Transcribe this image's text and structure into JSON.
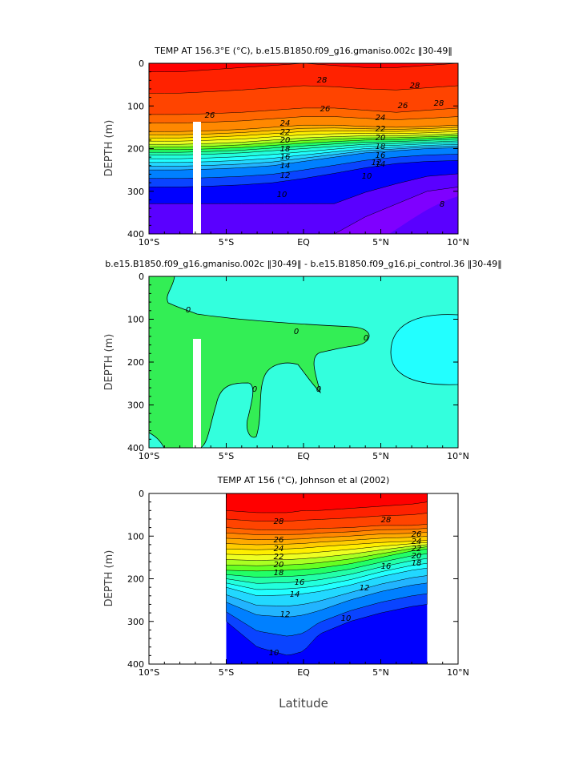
{
  "figure": {
    "xlabel": "Latitude"
  },
  "chart_data": [
    {
      "type": "heatmap",
      "title": "TEMP AT 156.3°E (°C), b.e15.B1850.f09_g16.gmaniso.002c ‖30-49‖",
      "ylabel": "DEPTH (m)",
      "xlim": [
        -10,
        10
      ],
      "ylim": [
        400,
        0
      ],
      "x_ticks": [
        "10°S",
        "5°S",
        "EQ",
        "5°N",
        "10°N"
      ],
      "y_ticks": [
        "0",
        "100",
        "200",
        "300",
        "400"
      ],
      "contour_levels": [
        8,
        9,
        10,
        11,
        12,
        13,
        14,
        15,
        16,
        17,
        18,
        19,
        20,
        21,
        22,
        23,
        24,
        25,
        26,
        27,
        28,
        29
      ],
      "contour_labels": [
        "28",
        "28",
        "28",
        "26",
        "26",
        "26",
        "24",
        "24",
        "22",
        "22",
        "20",
        "20",
        "18",
        "18",
        "16",
        "16",
        "14",
        "14",
        "12",
        "12",
        "10",
        "10",
        "8"
      ],
      "isotherm_depths": {
        "lat": [
          -10,
          -8,
          -6,
          -4,
          -2,
          0,
          2,
          4,
          6,
          8,
          10
        ],
        "28": [
          20,
          20,
          15,
          10,
          5,
          0,
          5,
          10,
          10,
          5,
          0
        ],
        "26": [
          120,
          120,
          118,
          115,
          110,
          105,
          105,
          110,
          115,
          110,
          105
        ],
        "24": [
          160,
          160,
          158,
          155,
          150,
          145,
          145,
          148,
          150,
          148,
          145
        ],
        "20": [
          190,
          190,
          188,
          185,
          180,
          175,
          172,
          170,
          170,
          168,
          165
        ],
        "16": [
          215,
          215,
          213,
          210,
          205,
          200,
          195,
          190,
          188,
          185,
          182
        ],
        "12": [
          250,
          250,
          248,
          245,
          240,
          230,
          220,
          210,
          205,
          200,
          198
        ],
        "10": [
          290,
          290,
          288,
          285,
          280,
          270,
          258,
          245,
          235,
          230,
          228
        ],
        "8": [
          null,
          null,
          null,
          null,
          null,
          null,
          400,
          360,
          330,
          300,
          290
        ]
      }
    },
    {
      "type": "heatmap",
      "title": "b.e15.B1850.f09_g16.gmaniso.002c ‖30-49‖ - b.e15.B1850.f09_g16.pi_control.36 ‖30-49‖",
      "ylabel": "DEPTH (m)",
      "xlim": [
        -10,
        10
      ],
      "ylim": [
        400,
        0
      ],
      "x_ticks": [
        "10°S",
        "5°S",
        "EQ",
        "5°N",
        "10°N"
      ],
      "y_ticks": [
        "0",
        "100",
        "200",
        "300",
        "400"
      ],
      "contour_labels": [
        "0",
        "0",
        "0",
        "0",
        "0"
      ],
      "regions": [
        {
          "sign": "negative",
          "color": "#33ee55"
        },
        {
          "sign": "near-zero",
          "color": "#33ffdd"
        },
        {
          "sign": "positive",
          "color": "#22ffff"
        }
      ]
    },
    {
      "type": "heatmap",
      "title": "TEMP AT 156 (°C), Johnson et al (2002)",
      "ylabel": "DEPTH (m)",
      "xlim": [
        -10,
        10
      ],
      "ylim": [
        400,
        0
      ],
      "data_xlim": [
        -5,
        8
      ],
      "x_ticks": [
        "10°S",
        "5°S",
        "EQ",
        "5°N",
        "10°N"
      ],
      "y_ticks": [
        "0",
        "100",
        "200",
        "300",
        "400"
      ],
      "contour_labels": [
        "28",
        "28",
        "26",
        "26",
        "24",
        "24",
        "22",
        "22",
        "20",
        "20",
        "18",
        "18",
        "16",
        "16",
        "14",
        "12",
        "12",
        "10",
        "10"
      ],
      "isotherm_depths": {
        "lat": [
          -5,
          -3,
          -1,
          0,
          1,
          3,
          5,
          7,
          8
        ],
        "28": [
          40,
          45,
          45,
          40,
          40,
          35,
          30,
          25,
          20
        ],
        "26": [
          80,
          85,
          85,
          85,
          82,
          80,
          75,
          75,
          72
        ],
        "22": [
          130,
          132,
          130,
          128,
          125,
          120,
          115,
          112,
          110
        ],
        "18": [
          180,
          182,
          180,
          178,
          175,
          165,
          150,
          135,
          130
        ],
        "14": [
          220,
          240,
          238,
          235,
          230,
          215,
          195,
          180,
          175
        ],
        "12": [
          255,
          285,
          290,
          285,
          275,
          250,
          230,
          215,
          210
        ],
        "10": [
          300,
          360,
          380,
          370,
          330,
          300,
          280,
          265,
          260
        ]
      }
    }
  ],
  "palette": [
    "#7f00ff",
    "#5a00ff",
    "#0000ff",
    "#0a44ff",
    "#0080ff",
    "#22b4ff",
    "#22d8ff",
    "#22ffff",
    "#22ffdd",
    "#22ffa8",
    "#22ff66",
    "#66ff22",
    "#aaff22",
    "#eeff22",
    "#ffee00",
    "#ffcc00",
    "#ffaa00",
    "#ff8800",
    "#ff6600",
    "#ff4400",
    "#ff2200",
    "#ff0000"
  ]
}
